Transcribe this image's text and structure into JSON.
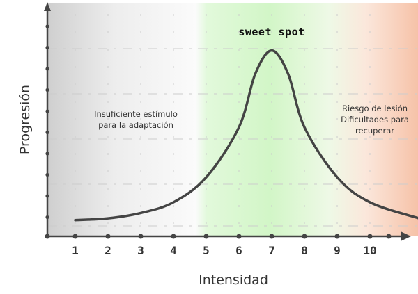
{
  "chart_data": {
    "type": "line",
    "title": "",
    "xlabel": "Intensidad",
    "ylabel": "Progresión",
    "x_ticks": [
      "1",
      "2",
      "3",
      "4",
      "5",
      "6",
      "7",
      "8",
      "9",
      "10"
    ],
    "xlim": [
      0,
      11.5
    ],
    "ylim": [
      0,
      1
    ],
    "grid": true,
    "series": [
      {
        "x": [
          1,
          2,
          3,
          4,
          5,
          6,
          6.5,
          7,
          7.5,
          8,
          9,
          10,
          11.5
        ],
        "y": [
          0.04,
          0.05,
          0.08,
          0.14,
          0.28,
          0.56,
          0.86,
          0.99,
          0.86,
          0.56,
          0.28,
          0.14,
          0.05
        ]
      }
    ],
    "zones": [
      {
        "label": "Insuficiente estímulo para la adaptación",
        "color": "#d9d9d9"
      },
      {
        "label": "sweet spot",
        "color": "#d2f7c8"
      },
      {
        "label": "Riesgo de lesión Dificultades para recuperar",
        "color": "#f6c8b0"
      }
    ]
  },
  "labels": {
    "left_zone_line1": "Insuficiente estímulo",
    "left_zone_line2": "para la adaptación",
    "sweet_spot": "sweet spot",
    "right_zone_line1": "Riesgo de lesión",
    "right_zone_line2": "Dificultades para",
    "right_zone_line3": "recuperar"
  },
  "colors": {
    "curve": "#444444",
    "axis": "#444444",
    "grid": "#cccccc"
  }
}
